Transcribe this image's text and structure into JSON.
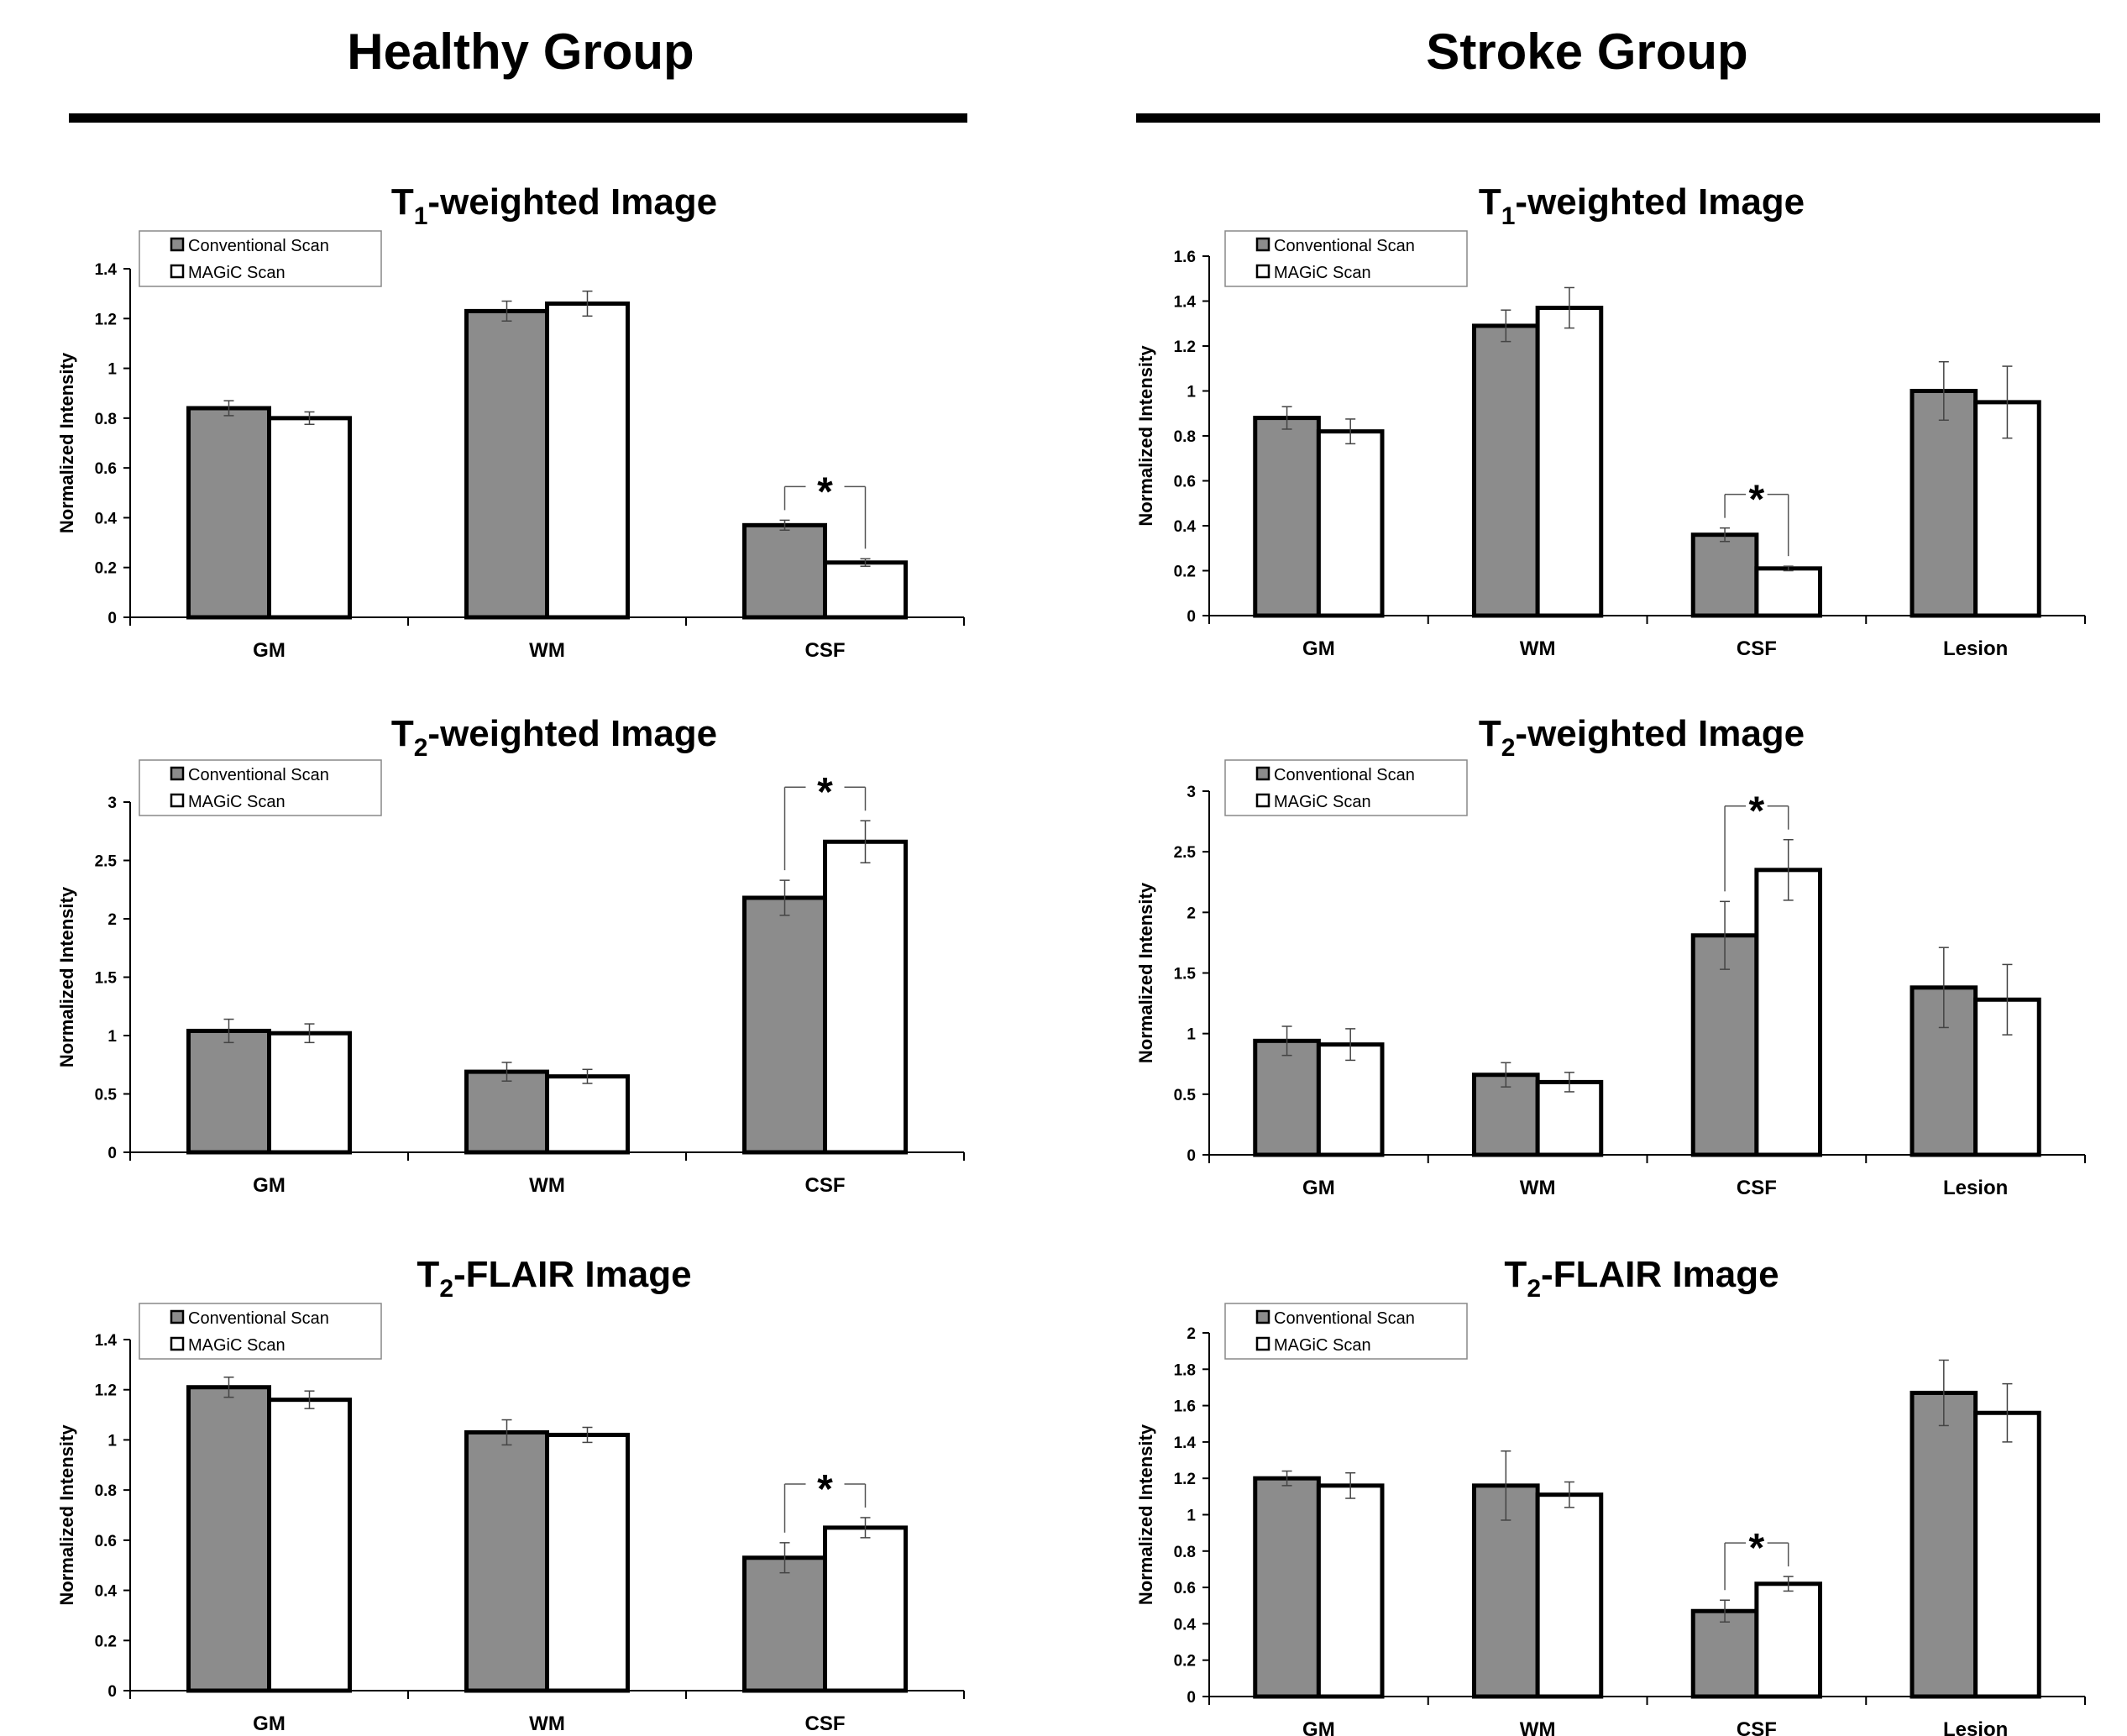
{
  "groups": {
    "healthy": {
      "title": "Healthy Group"
    },
    "stroke": {
      "title": "Stroke Group"
    }
  },
  "legend": {
    "conventional": "Conventional Scan",
    "magic": "MAGiC Scan"
  },
  "colors": {
    "conventional": "#8c8c8c",
    "magic": "#ffffff",
    "axis": "#000000"
  },
  "chart_data": [
    {
      "id": "healthy-t1",
      "type": "bar",
      "group": "Healthy Group",
      "title_main": "T",
      "title_sub": "1",
      "title_rest": "-weighted Image",
      "ylabel": "Normalized Intensity",
      "xlabel": "",
      "ylim": [
        0,
        1.4
      ],
      "ytick_step": 0.2,
      "yticks": [
        "0",
        "0.2",
        "0.4",
        "0.6",
        "0.8",
        "1",
        "1.2",
        "1.4"
      ],
      "categories": [
        "GM",
        "WM",
        "CSF"
      ],
      "series": [
        {
          "name": "Conventional Scan",
          "values": [
            0.84,
            1.23,
            0.37
          ],
          "errors": [
            0.03,
            0.04,
            0.02
          ]
        },
        {
          "name": "MAGiC Scan",
          "values": [
            0.8,
            1.26,
            0.22
          ],
          "errors": [
            0.025,
            0.05,
            0.015
          ]
        }
      ],
      "significance": [
        {
          "category": "CSF",
          "label": "*"
        }
      ],
      "legend": "top-left"
    },
    {
      "id": "healthy-t2",
      "type": "bar",
      "group": "Healthy Group",
      "title_main": "T",
      "title_sub": "2",
      "title_rest": "-weighted Image",
      "ylabel": "Normalized Intensity",
      "xlabel": "",
      "ylim": [
        0,
        3
      ],
      "ytick_step": 0.5,
      "yticks": [
        "0",
        "0.5",
        "1",
        "1.5",
        "2",
        "2.5",
        "3"
      ],
      "categories": [
        "GM",
        "WM",
        "CSF"
      ],
      "series": [
        {
          "name": "Conventional Scan",
          "values": [
            1.04,
            0.69,
            2.18
          ],
          "errors": [
            0.1,
            0.08,
            0.15
          ]
        },
        {
          "name": "MAGiC Scan",
          "values": [
            1.02,
            0.65,
            2.66
          ],
          "errors": [
            0.08,
            0.06,
            0.18
          ]
        }
      ],
      "significance": [
        {
          "category": "CSF",
          "label": "*"
        }
      ],
      "legend": "top-left"
    },
    {
      "id": "healthy-flair",
      "type": "bar",
      "group": "Healthy Group",
      "title_main": "T",
      "title_sub": "2",
      "title_rest": "-FLAIR Image",
      "ylabel": "Normalized Intensity",
      "xlabel": "",
      "ylim": [
        0,
        1.4
      ],
      "ytick_step": 0.2,
      "yticks": [
        "0",
        "0.2",
        "0.4",
        "0.6",
        "0.8",
        "1",
        "1.2",
        "1.4"
      ],
      "categories": [
        "GM",
        "WM",
        "CSF"
      ],
      "series": [
        {
          "name": "Conventional Scan",
          "values": [
            1.21,
            1.03,
            0.53
          ],
          "errors": [
            0.04,
            0.05,
            0.06
          ]
        },
        {
          "name": "MAGiC Scan",
          "values": [
            1.16,
            1.02,
            0.65
          ],
          "errors": [
            0.035,
            0.03,
            0.04
          ]
        }
      ],
      "significance": [
        {
          "category": "CSF",
          "label": "*"
        }
      ],
      "legend": "top-left"
    },
    {
      "id": "stroke-t1",
      "type": "bar",
      "group": "Stroke Group",
      "title_main": "T",
      "title_sub": "1",
      "title_rest": "-weighted Image",
      "ylabel": "Normalized Intensity",
      "xlabel": "",
      "ylim": [
        0,
        1.6
      ],
      "ytick_step": 0.2,
      "yticks": [
        "0",
        "0.2",
        "0.4",
        "0.6",
        "0.8",
        "1",
        "1.2",
        "1.4",
        "1.6"
      ],
      "categories": [
        "GM",
        "WM",
        "CSF",
        "Lesion"
      ],
      "series": [
        {
          "name": "Conventional Scan",
          "values": [
            0.88,
            1.29,
            0.36,
            1.0
          ],
          "errors": [
            0.05,
            0.07,
            0.03,
            0.13
          ]
        },
        {
          "name": "MAGiC Scan",
          "values": [
            0.82,
            1.37,
            0.21,
            0.95
          ],
          "errors": [
            0.055,
            0.09,
            0.01,
            0.16
          ]
        }
      ],
      "significance": [
        {
          "category": "CSF",
          "label": "*"
        }
      ],
      "legend": "top-left"
    },
    {
      "id": "stroke-t2",
      "type": "bar",
      "group": "Stroke Group",
      "title_main": "T",
      "title_sub": "2",
      "title_rest": "-weighted Image",
      "ylabel": "Normalized Intensity",
      "xlabel": "",
      "ylim": [
        0,
        3
      ],
      "ytick_step": 0.5,
      "yticks": [
        "0",
        "0.5",
        "1",
        "1.5",
        "2",
        "2.5",
        "3"
      ],
      "categories": [
        "GM",
        "WM",
        "CSF",
        "Lesion"
      ],
      "series": [
        {
          "name": "Conventional Scan",
          "values": [
            0.94,
            0.66,
            1.81,
            1.38
          ],
          "errors": [
            0.12,
            0.1,
            0.28,
            0.33
          ]
        },
        {
          "name": "MAGiC Scan",
          "values": [
            0.91,
            0.6,
            2.35,
            1.28
          ],
          "errors": [
            0.13,
            0.08,
            0.25,
            0.29
          ]
        }
      ],
      "significance": [
        {
          "category": "CSF",
          "label": "*"
        }
      ],
      "legend": "top-left"
    },
    {
      "id": "stroke-flair",
      "type": "bar",
      "group": "Stroke Group",
      "title_main": "T",
      "title_sub": "2",
      "title_rest": "-FLAIR Image",
      "ylabel": "Normalized Intensity",
      "xlabel": "",
      "ylim": [
        0,
        2
      ],
      "ytick_step": 0.2,
      "yticks": [
        "0",
        "0.2",
        "0.4",
        "0.6",
        "0.8",
        "1",
        "1.2",
        "1.4",
        "1.6",
        "1.8",
        "2"
      ],
      "categories": [
        "GM",
        "WM",
        "CSF",
        "Lesion"
      ],
      "series": [
        {
          "name": "Conventional Scan",
          "values": [
            1.2,
            1.16,
            0.47,
            1.67
          ],
          "errors": [
            0.04,
            0.19,
            0.06,
            0.18
          ]
        },
        {
          "name": "MAGiC Scan",
          "values": [
            1.16,
            1.11,
            0.62,
            1.56
          ],
          "errors": [
            0.07,
            0.07,
            0.04,
            0.16
          ]
        }
      ],
      "significance": [
        {
          "category": "CSF",
          "label": "*"
        }
      ],
      "legend": "top-left"
    }
  ]
}
